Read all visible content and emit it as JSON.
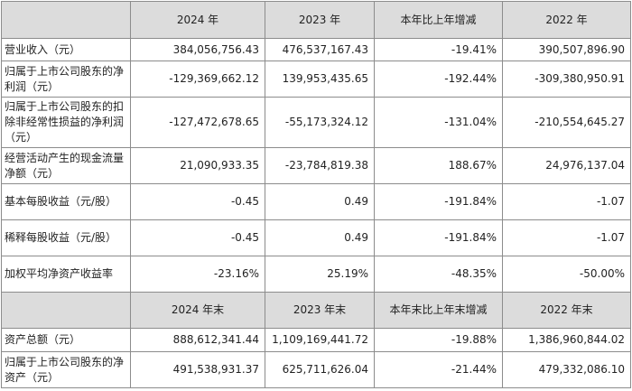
{
  "table": {
    "header": [
      "",
      "2024 年",
      "2023 年",
      "本年比上年增减",
      "2022 年"
    ],
    "rows": [
      [
        "营业收入（元）",
        "384,056,756.43",
        "476,537,167.43",
        "-19.41%",
        "390,507,896.90"
      ],
      [
        "归属于上市公司股东的净利润（元）",
        "-129,369,662.12",
        "139,953,435.65",
        "-192.44%",
        "-309,380,950.91"
      ],
      [
        "归属于上市公司股东的扣除非经常性损益的净利润（元）",
        "-127,472,678.65",
        "-55,173,324.12",
        "-131.04%",
        "-210,554,645.27"
      ],
      [
        "经营活动产生的现金流量净额（元）",
        "21,090,933.35",
        "-23,784,819.38",
        "188.67%",
        "24,976,137.04"
      ],
      [
        "基本每股收益（元/股）",
        "-0.45",
        "0.49",
        "-191.84%",
        "-1.07"
      ],
      [
        "稀释每股收益（元/股）",
        "-0.45",
        "0.49",
        "-191.84%",
        "-1.07"
      ],
      [
        "加权平均净资产收益率",
        "-23.16%",
        "25.19%",
        "-48.35%",
        "-50.00%"
      ]
    ],
    "header2": [
      "",
      "2024 年末",
      "2023 年末",
      "本年末比上年末增减",
      "2022 年末"
    ],
    "rows2": [
      [
        "资产总额（元）",
        "888,612,341.44",
        "1,109,169,441.72",
        "-19.88%",
        "1,386,960,844.02"
      ],
      [
        "归属于上市公司股东的净资产（元）",
        "491,538,931.37",
        "625,711,626.04",
        "-21.44%",
        "479,332,086.10"
      ]
    ]
  }
}
